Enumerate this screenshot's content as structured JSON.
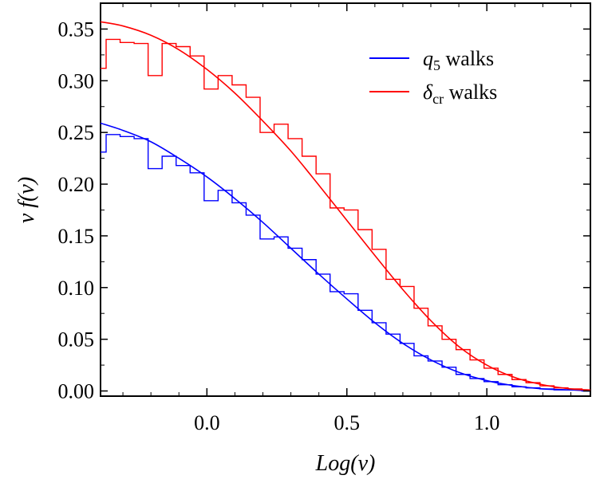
{
  "chart_data": {
    "type": "line",
    "title": "",
    "xlabel": "Log(ν)",
    "ylabel": "ν f(ν)",
    "xlim": [
      -0.38,
      1.37
    ],
    "ylim": [
      -0.005,
      0.375
    ],
    "x_ticks": [
      0.0,
      0.5,
      1.0
    ],
    "x_tick_labels": [
      "0.0",
      "0.5",
      "1.0"
    ],
    "y_ticks": [
      0.0,
      0.05,
      0.1,
      0.15,
      0.2,
      0.25,
      0.3,
      0.35
    ],
    "y_tick_labels": [
      "0.00",
      "0.05",
      "0.10",
      "0.15",
      "0.20",
      "0.25",
      "0.30",
      "0.35"
    ],
    "legend_position": "top-right",
    "series": [
      {
        "name": "q5 walks",
        "legend_main": "q",
        "legend_sub": "5",
        "legend_rest": " walks",
        "color": "#0000ff",
        "curve": {
          "x": [
            -0.38,
            -0.3,
            -0.2,
            -0.1,
            0.0,
            0.1,
            0.2,
            0.3,
            0.4,
            0.5,
            0.6,
            0.7,
            0.8,
            0.9,
            1.0,
            1.1,
            1.2,
            1.3,
            1.37
          ],
          "y": [
            0.259,
            0.252,
            0.241,
            0.225,
            0.207,
            0.186,
            0.163,
            0.138,
            0.113,
            0.089,
            0.066,
            0.046,
            0.03,
            0.018,
            0.01,
            0.005,
            0.002,
            0.001,
            0.0
          ]
        },
        "histogram": {
          "edges": [
            -0.38,
            -0.36,
            -0.31,
            -0.26,
            -0.21,
            -0.16,
            -0.11,
            -0.06,
            -0.01,
            0.04,
            0.09,
            0.14,
            0.19,
            0.24,
            0.29,
            0.34,
            0.39,
            0.44,
            0.49,
            0.54,
            0.59,
            0.64,
            0.69,
            0.74,
            0.79,
            0.84,
            0.89,
            0.94,
            0.99,
            1.04,
            1.09,
            1.14,
            1.19,
            1.24,
            1.29,
            1.34,
            1.37
          ],
          "values": [
            0.231,
            0.248,
            0.246,
            0.244,
            0.215,
            0.227,
            0.218,
            0.211,
            0.184,
            0.194,
            0.182,
            0.17,
            0.147,
            0.149,
            0.138,
            0.127,
            0.113,
            0.096,
            0.094,
            0.078,
            0.066,
            0.055,
            0.046,
            0.034,
            0.029,
            0.023,
            0.016,
            0.012,
            0.009,
            0.006,
            0.004,
            0.003,
            0.002,
            0.001,
            0.001,
            0.0
          ]
        }
      },
      {
        "name": "δcr walks",
        "legend_main": "δ",
        "legend_sub": "cr",
        "legend_rest": " walks",
        "color": "#ff0000",
        "curve": {
          "x": [
            -0.38,
            -0.3,
            -0.2,
            -0.1,
            0.0,
            0.1,
            0.2,
            0.3,
            0.4,
            0.5,
            0.6,
            0.7,
            0.8,
            0.9,
            1.0,
            1.1,
            1.2,
            1.3,
            1.37
          ],
          "y": [
            0.357,
            0.353,
            0.344,
            0.33,
            0.311,
            0.288,
            0.261,
            0.232,
            0.199,
            0.165,
            0.131,
            0.098,
            0.068,
            0.043,
            0.025,
            0.013,
            0.006,
            0.002,
            0.001
          ]
        },
        "histogram": {
          "edges": [
            -0.38,
            -0.36,
            -0.31,
            -0.26,
            -0.21,
            -0.16,
            -0.11,
            -0.06,
            -0.01,
            0.04,
            0.09,
            0.14,
            0.19,
            0.24,
            0.29,
            0.34,
            0.39,
            0.44,
            0.49,
            0.54,
            0.59,
            0.64,
            0.69,
            0.74,
            0.79,
            0.84,
            0.89,
            0.94,
            0.99,
            1.04,
            1.09,
            1.14,
            1.19,
            1.24,
            1.29,
            1.34,
            1.37
          ],
          "values": [
            0.312,
            0.34,
            0.337,
            0.336,
            0.305,
            0.336,
            0.333,
            0.324,
            0.292,
            0.305,
            0.296,
            0.284,
            0.25,
            0.258,
            0.244,
            0.227,
            0.21,
            0.177,
            0.175,
            0.156,
            0.137,
            0.108,
            0.101,
            0.08,
            0.063,
            0.05,
            0.04,
            0.03,
            0.022,
            0.016,
            0.011,
            0.008,
            0.005,
            0.003,
            0.002,
            0.001
          ]
        }
      }
    ]
  }
}
